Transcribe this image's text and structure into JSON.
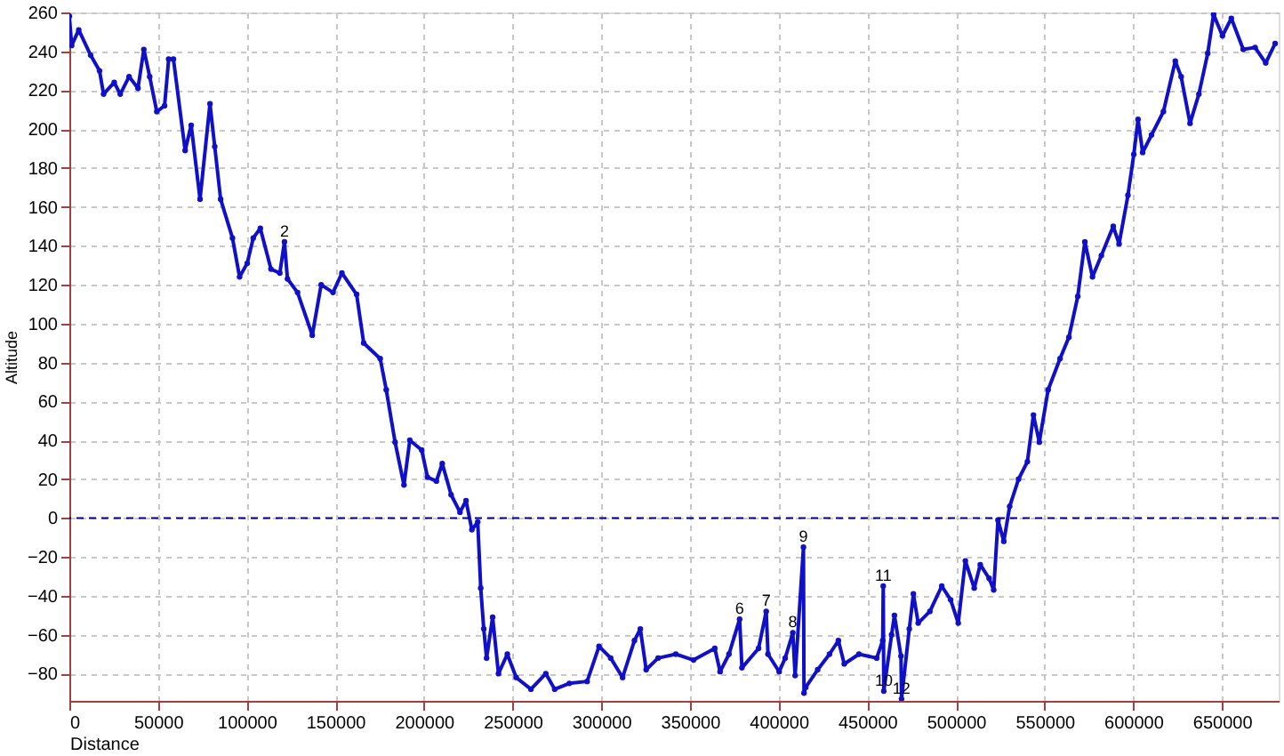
{
  "chart_data": {
    "type": "line",
    "xlabel": "Distance",
    "ylabel": "Altitude",
    "xlim": [
      0,
      682000
    ],
    "ylim": [
      -94,
      260
    ],
    "xticks": [
      0,
      50000,
      100000,
      150000,
      200000,
      250000,
      300000,
      350000,
      400000,
      450000,
      500000,
      550000,
      600000,
      650000
    ],
    "yticks": [
      -80,
      -60,
      -40,
      -20,
      0,
      20,
      40,
      60,
      80,
      100,
      120,
      140,
      160,
      180,
      200,
      220,
      240,
      260
    ],
    "grid": true,
    "marker": "circle",
    "line_style": "solid",
    "series": [
      {
        "color": "#1010c8",
        "x": [
          0,
          1300,
          5300,
          12000,
          17000,
          19300,
          25300,
          28700,
          33700,
          38700,
          42000,
          45300,
          49300,
          53700,
          56000,
          58700,
          65300,
          68700,
          73700,
          79300,
          82000,
          85300,
          92000,
          96000,
          100300,
          103700,
          107700,
          113700,
          118700,
          121300,
          123000,
          128700,
          137000,
          142000,
          148700,
          153700,
          162000,
          166000,
          175300,
          178700,
          183700,
          188700,
          192000,
          198700,
          202000,
          207000,
          210300,
          215300,
          220300,
          223700,
          227000,
          230300,
          232000,
          233700,
          235300,
          238700,
          242000,
          247000,
          252000,
          260300,
          268700,
          273700,
          282000,
          292000,
          298700,
          305300,
          312000,
          318700,
          322000,
          325300,
          332000,
          342000,
          352000,
          364000,
          367000,
          372000,
          378000,
          379300,
          388700,
          393000,
          394000,
          400300,
          403700,
          408000,
          409300,
          414000,
          414300,
          415300,
          422000,
          428700,
          433700,
          437000,
          445300,
          455300,
          458700,
          459000,
          459300,
          463700,
          465300,
          469000,
          469300,
          473700,
          476000,
          478700,
          485300,
          492000,
          497000,
          501300,
          505300,
          510300,
          513700,
          518700,
          521300,
          523700,
          527000,
          530300,
          535300,
          540300,
          543700,
          547000,
          552000,
          558700,
          563700,
          568700,
          572700,
          577000,
          582000,
          588700,
          592000,
          597000,
          600300,
          602700,
          605300,
          610300,
          617000,
          623700,
          627000,
          632000,
          637000,
          642000,
          645300,
          650300,
          655300,
          662000,
          668700,
          674700,
          680000
        ],
        "values": [
          258,
          243,
          251,
          238,
          230,
          218,
          224,
          218,
          227,
          221,
          241,
          227,
          209,
          212,
          236,
          236,
          189,
          202,
          164,
          213,
          191,
          164,
          144,
          124,
          131,
          144,
          149,
          128,
          126,
          142,
          123,
          116,
          94,
          120,
          116,
          126,
          115,
          90,
          82,
          66,
          39,
          17,
          40,
          35,
          21,
          19,
          28,
          12,
          3,
          9,
          -6,
          -2,
          -36,
          -57,
          -72,
          -51,
          -80,
          -70,
          -82,
          -88,
          -80,
          -88,
          -85,
          -84,
          -66,
          -72,
          -82,
          -63,
          -57,
          -78,
          -72,
          -70,
          -73,
          -67,
          -79,
          -70,
          -52,
          -77,
          -67,
          -48,
          -70,
          -79,
          -72,
          -59,
          -81,
          -15,
          -90,
          -87,
          -78,
          -70,
          -63,
          -75,
          -70,
          -72,
          -63,
          -35,
          -89,
          -60,
          -50,
          -71,
          -93,
          -57,
          -39,
          -54,
          -48,
          -35,
          -42,
          -54,
          -22,
          -36,
          -24,
          -31,
          -37,
          -1,
          -12,
          6,
          20,
          29,
          53,
          39,
          66,
          82,
          93,
          114,
          142,
          124,
          135,
          150,
          141,
          166,
          187,
          205,
          188,
          197,
          209,
          235,
          227,
          203,
          218,
          239,
          259,
          248,
          257,
          241,
          242,
          234,
          244
        ]
      }
    ],
    "ref_lines": [
      {
        "axis": "y",
        "value": 0,
        "color": "#000080",
        "line_style": "dashed"
      }
    ],
    "annotations": [
      {
        "text": "2",
        "x": 121300,
        "y": 142
      },
      {
        "text": "6",
        "x": 378000,
        "y": -52
      },
      {
        "text": "7",
        "x": 393000,
        "y": -48
      },
      {
        "text": "8",
        "x": 408000,
        "y": -59
      },
      {
        "text": "9",
        "x": 414000,
        "y": -15
      },
      {
        "text": "11",
        "x": 459000,
        "y": -35
      },
      {
        "text": "10",
        "x": 459300,
        "y": -89
      },
      {
        "text": "12",
        "x": 469300,
        "y": -93
      }
    ]
  }
}
